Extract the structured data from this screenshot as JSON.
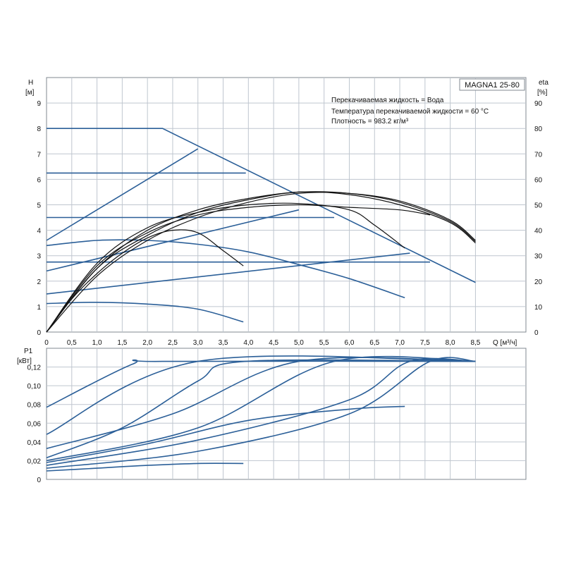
{
  "chart_data": [
    {
      "type": "line",
      "name": "head-efficiency",
      "title": "MAGNA1 25-80",
      "info": [
        "Перекачиваемая жидкость = Вода",
        "Температура перекачиваемой жидкости = 60 °C",
        "Плотность = 983.2 кг/м³"
      ],
      "xlabel": "Q [м³/ч]",
      "ylabel_left": [
        "H",
        "[м]"
      ],
      "ylabel_right": [
        "eta",
        "[%]"
      ],
      "xlim": [
        0,
        9.5
      ],
      "ylim": [
        0,
        10
      ],
      "ylim_right": [
        0,
        100
      ],
      "x_ticks": [
        "0",
        "0,5",
        "1,0",
        "1,5",
        "2,0",
        "2,5",
        "3,0",
        "3,5",
        "4,0",
        "4,5",
        "5,0",
        "5,5",
        "6,0",
        "6,5",
        "7,0",
        "7,5",
        "8,0",
        "8,5"
      ],
      "y_ticks": [
        "0",
        "1",
        "2",
        "3",
        "4",
        "5",
        "6",
        "7",
        "8",
        "9"
      ],
      "y_ticks_right": [
        "0",
        "10",
        "20",
        "30",
        "40",
        "50",
        "60",
        "70",
        "80",
        "90"
      ],
      "pump_curves": [
        {
          "name": "max-pressure-curve",
          "points": [
            [
              0,
              8.0
            ],
            [
              2.3,
              8.0
            ],
            [
              8.5,
              1.95
            ]
          ]
        },
        {
          "name": "constant-curve-6.25",
          "points": [
            [
              0,
              6.25
            ],
            [
              3.95,
              6.25
            ]
          ]
        },
        {
          "name": "constant-curve-4.5",
          "points": [
            [
              0,
              4.5
            ],
            [
              5.7,
              4.5
            ]
          ]
        },
        {
          "name": "constant-curve-2.75",
          "points": [
            [
              0,
              2.75
            ],
            [
              7.6,
              2.75
            ]
          ]
        },
        {
          "name": "proportional-curve-high",
          "points": [
            [
              0,
              3.6
            ],
            [
              3.0,
              7.2
            ]
          ]
        },
        {
          "name": "proportional-curve-mid",
          "points": [
            [
              0,
              2.4
            ],
            [
              5.0,
              4.8
            ]
          ]
        },
        {
          "name": "proportional-curve-low",
          "points": [
            [
              0,
              1.5
            ],
            [
              7.2,
              3.1
            ]
          ]
        },
        {
          "name": "autoadapt-curve-3.4",
          "points": [
            [
              0,
              3.4
            ],
            [
              1.0,
              3.6
            ],
            [
              2.0,
              3.6
            ],
            [
              3.0,
              3.45
            ],
            [
              4.0,
              3.15
            ],
            [
              5.0,
              2.65
            ],
            [
              6.0,
              2.1
            ],
            [
              7.1,
              1.35
            ]
          ]
        },
        {
          "name": "autoadapt-curve-1.1",
          "points": [
            [
              0,
              1.12
            ],
            [
              1.0,
              1.17
            ],
            [
              2.0,
              1.1
            ],
            [
              3.0,
              0.9
            ],
            [
              3.9,
              0.4
            ]
          ]
        }
      ],
      "efficiency_curves": [
        {
          "name": "efficiency-curve-1",
          "points": [
            [
              0,
              0
            ],
            [
              0.5,
              13
            ],
            [
              1,
              23
            ],
            [
              1.5,
              31
            ],
            [
              2,
              37
            ],
            [
              2.5,
              40
            ],
            [
              3,
              39
            ],
            [
              3.5,
              32
            ],
            [
              3.9,
              26
            ]
          ]
        },
        {
          "name": "efficiency-curve-2",
          "points": [
            [
              0,
              0
            ],
            [
              1,
              27
            ],
            [
              2,
              41
            ],
            [
              3,
              47
            ],
            [
              4,
              50
            ],
            [
              5,
              50.5
            ],
            [
              6,
              48
            ],
            [
              6.5,
              42
            ],
            [
              7.1,
              33
            ]
          ]
        },
        {
          "name": "efficiency-curve-3",
          "points": [
            [
              0,
              0
            ],
            [
              1,
              26
            ],
            [
              2,
              39
            ],
            [
              3,
              46
            ],
            [
              4,
              49
            ],
            [
              5,
              50
            ],
            [
              6,
              49
            ],
            [
              7,
              48
            ],
            [
              7.6,
              46
            ]
          ]
        },
        {
          "name": "efficiency-curve-4",
          "points": [
            [
              0,
              0
            ],
            [
              1,
              25
            ],
            [
              2,
              38
            ],
            [
              3,
              47
            ],
            [
              4,
              52
            ],
            [
              5,
              55
            ],
            [
              6,
              54
            ],
            [
              7,
              50
            ],
            [
              8,
              43
            ],
            [
              8.5,
              35
            ]
          ]
        },
        {
          "name": "efficiency-curve-5",
          "points": [
            [
              0,
              0
            ],
            [
              1,
              25
            ],
            [
              2,
              40
            ],
            [
              3,
              48
            ],
            [
              4,
              52.5
            ],
            [
              5,
              55
            ],
            [
              6,
              54.5
            ],
            [
              7,
              51
            ],
            [
              8,
              43.5
            ],
            [
              8.5,
              35.5
            ]
          ]
        },
        {
          "name": "efficiency-curve-6",
          "points": [
            [
              0,
              0
            ],
            [
              1,
              22
            ],
            [
              2,
              36
            ],
            [
              3,
              45
            ],
            [
              4,
              51
            ],
            [
              5,
              54.5
            ],
            [
              6,
              54.5
            ],
            [
              7,
              51.5
            ],
            [
              8,
              44
            ],
            [
              8.5,
              36
            ]
          ]
        }
      ]
    },
    {
      "type": "line",
      "name": "power",
      "ylabel": [
        "P1",
        "[кВт]"
      ],
      "xlim": [
        0,
        9.5
      ],
      "ylim": [
        0,
        0.14
      ],
      "y_ticks": [
        "0",
        "0,02",
        "0,04",
        "0,06",
        "0,08",
        "0,10",
        "0,12"
      ],
      "power_curves": [
        {
          "name": "power-curve-max",
          "points": [
            [
              0,
              0.077
            ],
            [
              1.7,
              0.123
            ],
            [
              2.3,
              0.126
            ],
            [
              8.5,
              0.126
            ]
          ]
        },
        {
          "name": "power-curve-prop-high",
          "points": [
            [
              0,
              0.048
            ],
            [
              3.0,
              0.126
            ],
            [
              8.5,
              0.126
            ]
          ]
        },
        {
          "name": "power-curve-const-high",
          "points": [
            [
              0,
              0.023
            ],
            [
              1.5,
              0.055
            ],
            [
              3.0,
              0.105
            ],
            [
              3.95,
              0.126
            ],
            [
              8.5,
              0.126
            ]
          ]
        },
        {
          "name": "power-curve-prop-mid",
          "points": [
            [
              0,
              0.033
            ],
            [
              2.5,
              0.07
            ],
            [
              5.0,
              0.126
            ],
            [
              8.5,
              0.126
            ]
          ]
        },
        {
          "name": "power-curve-const-mid",
          "points": [
            [
              0,
              0.02
            ],
            [
              3.0,
              0.055
            ],
            [
              5.7,
              0.126
            ],
            [
              8.5,
              0.126
            ]
          ]
        },
        {
          "name": "power-curve-autoadapt-high",
          "points": [
            [
              0,
              0.018
            ],
            [
              2.0,
              0.038
            ],
            [
              4.0,
              0.063
            ],
            [
              6.0,
              0.075
            ],
            [
              7.1,
              0.078
            ]
          ]
        },
        {
          "name": "power-curve-prop-low",
          "points": [
            [
              0,
              0.015
            ],
            [
              3.0,
              0.042
            ],
            [
              6.0,
              0.085
            ],
            [
              7.2,
              0.126
            ],
            [
              8.5,
              0.126
            ]
          ]
        },
        {
          "name": "power-curve-const-low",
          "points": [
            [
              0,
              0.012
            ],
            [
              3.0,
              0.03
            ],
            [
              6.0,
              0.07
            ],
            [
              7.6,
              0.126
            ],
            [
              8.5,
              0.126
            ]
          ]
        },
        {
          "name": "power-curve-autoadapt-low",
          "points": [
            [
              0,
              0.009
            ],
            [
              1.0,
              0.012
            ],
            [
              2.0,
              0.015
            ],
            [
              3.0,
              0.017
            ],
            [
              3.9,
              0.017
            ]
          ]
        }
      ]
    }
  ]
}
